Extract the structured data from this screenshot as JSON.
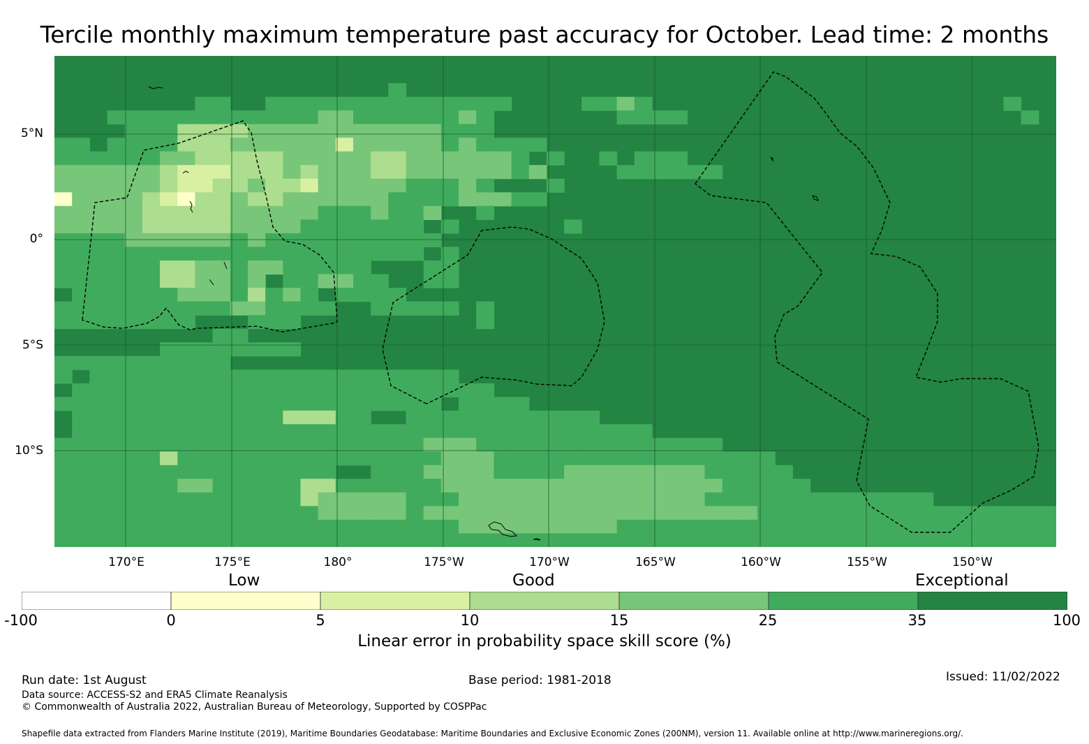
{
  "title": "Tercile monthly maximum temperature past accuracy for October. Lead time: 2 months",
  "map": {
    "y_labels": [
      "5°N",
      "0°",
      "5°S",
      "10°S"
    ],
    "x_labels": [
      "170°E",
      "175°E",
      "180°",
      "175°W",
      "170°W",
      "165°W",
      "160°W",
      "155°W",
      "150°W"
    ],
    "colors": {
      "exceptional": "#238443",
      "very_good": "#41ab5d",
      "good_high": "#78c679",
      "good": "#addd8e",
      "low_high": "#d9f0a3",
      "low": "#ffffcc",
      "none": "#ffffff",
      "grid": "#1a5a2e",
      "boundary": "#000000"
    }
  },
  "legend": {
    "categories": [
      "Low",
      "Good",
      "Exceptional"
    ],
    "ticks": [
      "-100",
      "0",
      "5",
      "10",
      "15",
      "25",
      "35",
      "100"
    ],
    "colors": [
      "#ffffff",
      "#ffffcc",
      "#d9f0a3",
      "#addd8e",
      "#78c679",
      "#41ab5d",
      "#238443"
    ],
    "title": "Linear error in probability space skill score (%)"
  },
  "footer": {
    "run_date": "Run date: 1st August",
    "base_period": "Base period: 1981-2018",
    "issued": "Issued: 11/02/2022",
    "data_source": "Data source: ACCESS-S2 and ERA5 Climate Reanalysis",
    "copyright": "© Commonwealth of Australia 2022, Australian Bureau of Meteorology, Supported by COSPPac",
    "shapefile": "Shapefile data extracted from Flanders Marine Institute (2019), Maritime Boundaries Geodatabase: Maritime Boundaries and Exclusive Economic Zones (200NM), version 11. Available online at http://www.marineregions.org/."
  }
}
